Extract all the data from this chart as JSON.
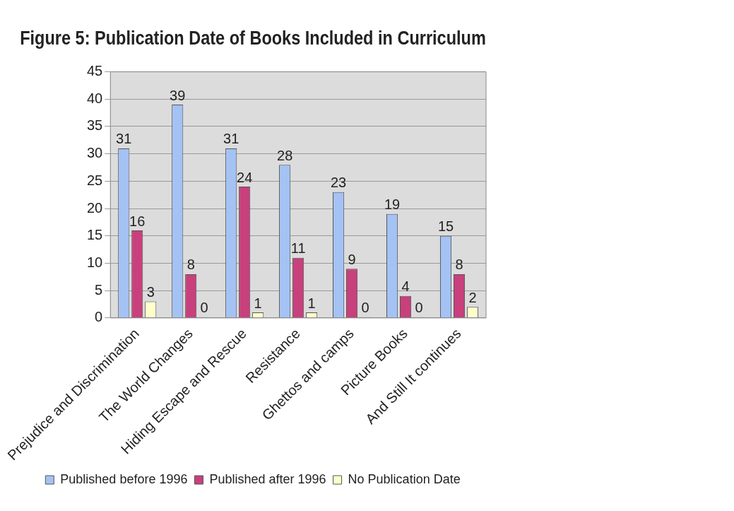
{
  "chart_data": {
    "type": "bar",
    "title": "Figure 5: Publication Date of Books Included in Curriculum",
    "categories": [
      "Prejudice and Discrimination",
      "The World Changes",
      "Hiding Escape and Rescue",
      "Resistance",
      "Ghettos and camps",
      "Picture Books",
      "And Still It continues"
    ],
    "series": [
      {
        "name": "Published before 1996",
        "color": "#a4c2f4",
        "values": [
          31,
          39,
          31,
          28,
          23,
          19,
          15
        ]
      },
      {
        "name": "Published after 1996",
        "color": "#c8407c",
        "values": [
          16,
          8,
          24,
          11,
          9,
          4,
          8
        ]
      },
      {
        "name": "No Publication Date",
        "color": "#ffffcc",
        "values": [
          3,
          0,
          1,
          1,
          0,
          0,
          2
        ]
      }
    ],
    "ylim": [
      0,
      45
    ],
    "yticks": [
      0,
      5,
      10,
      15,
      20,
      25,
      30,
      35,
      40,
      45
    ],
    "grid": "y",
    "legend": "bottom",
    "data_labels": true
  }
}
